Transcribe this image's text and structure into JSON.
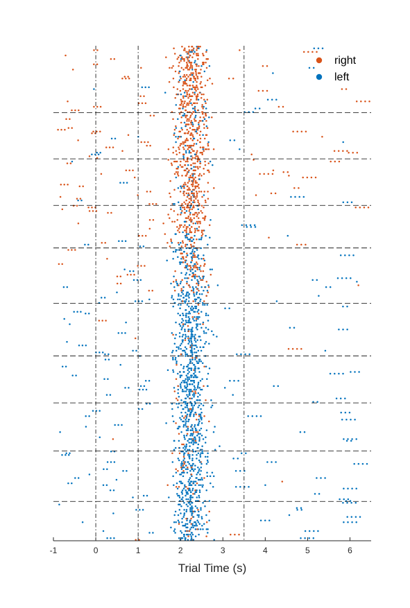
{
  "chart_data": {
    "type": "scatter",
    "subtype": "raster",
    "title": "",
    "xlabel": "Trial Time (s)",
    "ylabel": "",
    "xlim": [
      -1,
      6.5
    ],
    "x_ticks": [
      -1,
      0,
      1,
      2,
      3,
      4,
      5,
      6
    ],
    "grid": false,
    "legend_position": "top-right",
    "series": [
      {
        "name": "right",
        "color": "#D95319"
      },
      {
        "name": "left",
        "color": "#0072BD"
      }
    ],
    "event_lines_x": [
      0,
      1,
      3.5
    ],
    "block_boundaries_fraction": [
      0.135,
      0.2285,
      0.3225,
      0.4085,
      0.5205,
      0.6265,
      0.7215,
      0.8185,
      0.9205
    ],
    "trial_count": 280,
    "rows_right_fraction": 0.38,
    "response_time_center_s": 2.25,
    "response_time_spread_s": 0.38
  }
}
